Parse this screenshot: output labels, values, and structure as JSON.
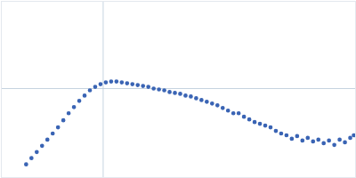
{
  "chart_data": {
    "type": "scatter",
    "x": [
      0.28,
      0.34,
      0.4,
      0.46,
      0.52,
      0.58,
      0.64,
      0.7,
      0.76,
      0.82,
      0.88,
      0.94,
      1.0,
      1.06,
      1.12,
      1.18,
      1.24,
      1.3,
      1.36,
      1.42,
      1.48,
      1.54,
      1.6,
      1.66,
      1.72,
      1.78,
      1.84,
      1.9,
      1.96,
      2.02,
      2.08,
      2.14,
      2.2,
      2.26,
      2.32,
      2.38,
      2.44,
      2.5,
      2.56,
      2.62,
      2.68,
      2.74,
      2.8,
      2.86,
      2.92,
      2.98,
      3.04,
      3.1,
      3.16,
      3.22,
      3.28,
      3.34,
      3.4,
      3.46,
      3.52,
      3.58,
      3.64,
      3.7,
      3.76,
      3.82,
      3.88,
      3.94,
      3.98
    ],
    "values": [
      0.15,
      0.22,
      0.29,
      0.36,
      0.43,
      0.5,
      0.57,
      0.65,
      0.73,
      0.8,
      0.87,
      0.93,
      0.99,
      1.03,
      1.06,
      1.08,
      1.09,
      1.09,
      1.08,
      1.07,
      1.06,
      1.05,
      1.04,
      1.03,
      1.01,
      1.0,
      0.99,
      0.97,
      0.96,
      0.95,
      0.93,
      0.92,
      0.9,
      0.88,
      0.86,
      0.84,
      0.82,
      0.79,
      0.76,
      0.73,
      0.73,
      0.69,
      0.66,
      0.63,
      0.61,
      0.59,
      0.57,
      0.53,
      0.5,
      0.48,
      0.44,
      0.47,
      0.42,
      0.45,
      0.41,
      0.43,
      0.39,
      0.42,
      0.37,
      0.43,
      0.4,
      0.45,
      0.48
    ],
    "color": "#3a64b4",
    "marker": "circle",
    "xlim": [
      0,
      4
    ],
    "ylim": [
      0,
      2
    ],
    "xticks": [
      1.15
    ],
    "yticks": [
      1.01
    ],
    "grid": true,
    "tick_labels": false
  }
}
